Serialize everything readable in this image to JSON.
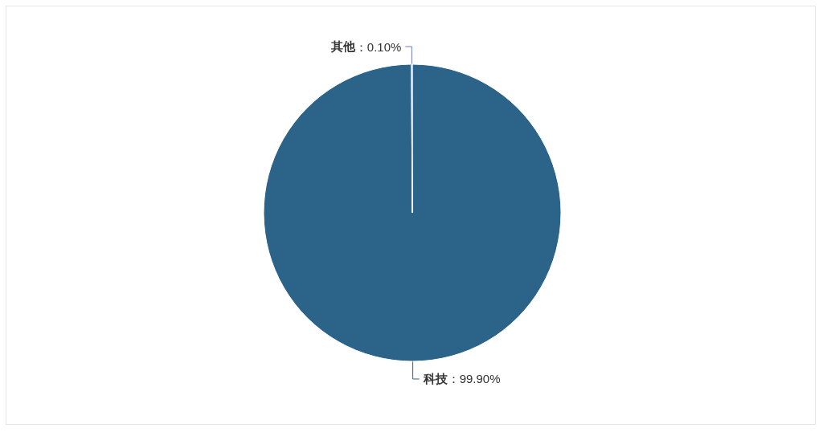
{
  "chart_data": {
    "type": "pie",
    "categories": [
      "科技",
      "其他"
    ],
    "values": [
      99.9,
      0.1
    ],
    "colors": [
      "#2c6388",
      "#6a7bbd"
    ],
    "value_labels": [
      "：99.90%",
      "：0.10%"
    ]
  }
}
